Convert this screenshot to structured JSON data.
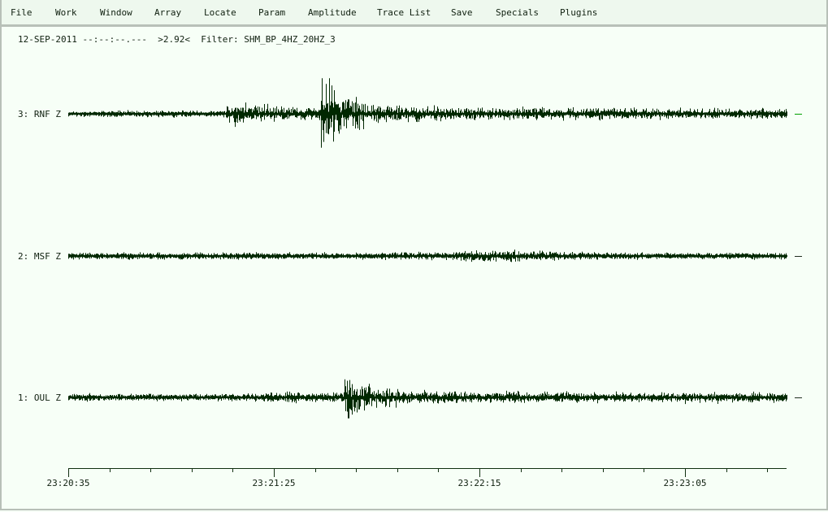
{
  "menu": [
    "File",
    "Work",
    "Window",
    "Array",
    "Locate",
    "Param",
    "Amplitude",
    "Trace List",
    "Save",
    "Specials",
    "Plugins"
  ],
  "status": {
    "date": "12-SEP-2011",
    "time": "--:--:--.---",
    "value": ">2.92<",
    "filter": "Filter: SHM_BP_4HZ_20HZ_3"
  },
  "traces": [
    {
      "label": "3: RNF Z",
      "marker_color": "#00a000"
    },
    {
      "label": "2: MSF Z",
      "marker_color": "#203020"
    },
    {
      "label": "1: OUL Z",
      "marker_color": "#203020"
    }
  ],
  "trace_color": "#002800",
  "time_axis": {
    "tick_interval_s": 10,
    "labels": [
      "23:20:35",
      "23:21:25",
      "23:22:15",
      "23:23:05"
    ]
  }
}
